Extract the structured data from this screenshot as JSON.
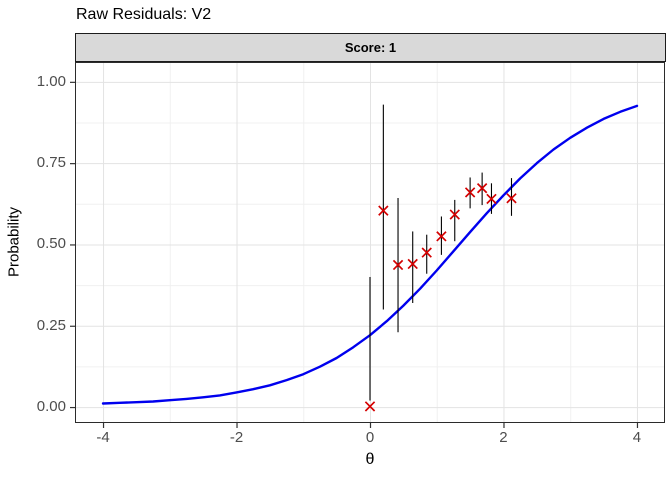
{
  "title": "Raw Residuals: V2",
  "facet_strip": "Score: 1",
  "colors": {
    "background": "#FFFFFF",
    "panel_bg": "#FFFFFF",
    "panel_border": "#2B2B2B",
    "grid_major": "#E3E3E3",
    "grid_minor": "#F0F0F0",
    "strip_bg": "#D9D9D9",
    "tick": "#333333",
    "tick_label": "#4D4D4D",
    "curve": "#0000EE",
    "marker": "#D40000",
    "errorbar": "#000000"
  },
  "chart_data": {
    "type": "line",
    "title": "Raw Residuals: V2",
    "facet": "Score: 1",
    "xlabel": "θ",
    "ylabel": "Probability",
    "xlim": [
      -4.42,
      4.42
    ],
    "ylim": [
      -0.049,
      1.061
    ],
    "x_ticks": [
      -4,
      -2,
      0,
      2,
      4
    ],
    "x_tick_labels": [
      "-4",
      "-2",
      "0",
      "2",
      "4"
    ],
    "x_minor_ticks": [
      -3,
      -1,
      1,
      3
    ],
    "y_ticks": [
      0,
      0.25,
      0.5,
      0.75,
      1
    ],
    "y_tick_labels": [
      "0.00",
      "0.25",
      "0.50",
      "0.75",
      "1.00"
    ],
    "y_minor_ticks": [
      0.125,
      0.375,
      0.625,
      0.875
    ],
    "grid": true,
    "legend_position": "none",
    "series": [
      {
        "name": "expected-probability-curve",
        "type": "line",
        "color": "#0000EE",
        "points": [
          [
            -4.0,
            0.011
          ],
          [
            -3.75,
            0.013
          ],
          [
            -3.5,
            0.015
          ],
          [
            -3.25,
            0.017
          ],
          [
            -3.0,
            0.021
          ],
          [
            -2.75,
            0.025
          ],
          [
            -2.5,
            0.03
          ],
          [
            -2.25,
            0.036
          ],
          [
            -2.0,
            0.045
          ],
          [
            -1.75,
            0.055
          ],
          [
            -1.5,
            0.067
          ],
          [
            -1.25,
            0.083
          ],
          [
            -1.0,
            0.101
          ],
          [
            -0.75,
            0.124
          ],
          [
            -0.5,
            0.151
          ],
          [
            -0.25,
            0.184
          ],
          [
            0.0,
            0.221
          ],
          [
            0.25,
            0.264
          ],
          [
            0.5,
            0.312
          ],
          [
            0.75,
            0.364
          ],
          [
            1.0,
            0.42
          ],
          [
            1.25,
            0.479
          ],
          [
            1.5,
            0.538
          ],
          [
            1.75,
            0.596
          ],
          [
            2.0,
            0.651
          ],
          [
            2.25,
            0.703
          ],
          [
            2.5,
            0.75
          ],
          [
            2.75,
            0.792
          ],
          [
            3.0,
            0.828
          ],
          [
            3.25,
            0.859
          ],
          [
            3.5,
            0.886
          ],
          [
            3.75,
            0.908
          ],
          [
            4.0,
            0.926
          ]
        ]
      },
      {
        "name": "observed-proportions-with-ci",
        "type": "scatter-errorbar",
        "marker": "x",
        "color": "#D40000",
        "errorbar_color": "#000000",
        "data": [
          {
            "theta": 0.0,
            "p": 0.002,
            "lo": 0.02,
            "hi": 0.4
          },
          {
            "theta": 0.2,
            "p": 0.604,
            "lo": 0.3,
            "hi": 0.93
          },
          {
            "theta": 0.42,
            "p": 0.437,
            "lo": 0.23,
            "hi": 0.643
          },
          {
            "theta": 0.64,
            "p": 0.44,
            "lo": 0.32,
            "hi": 0.54
          },
          {
            "theta": 0.85,
            "p": 0.475,
            "lo": 0.41,
            "hi": 0.53
          },
          {
            "theta": 1.07,
            "p": 0.525,
            "lo": 0.468,
            "hi": 0.586
          },
          {
            "theta": 1.27,
            "p": 0.592,
            "lo": 0.51,
            "hi": 0.637
          },
          {
            "theta": 1.5,
            "p": 0.66,
            "lo": 0.611,
            "hi": 0.706
          },
          {
            "theta": 1.68,
            "p": 0.673,
            "lo": 0.621,
            "hi": 0.721
          },
          {
            "theta": 1.82,
            "p": 0.64,
            "lo": 0.594,
            "hi": 0.688
          },
          {
            "theta": 2.12,
            "p": 0.642,
            "lo": 0.588,
            "hi": 0.704
          }
        ]
      }
    ]
  }
}
